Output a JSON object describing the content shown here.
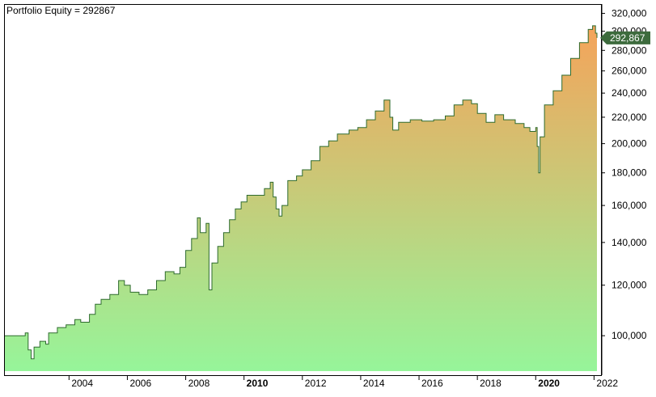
{
  "chart_title": "Portfolio Equity = 292867",
  "colors": {
    "line": "#2e6b2e",
    "fill_top": "#f5a35a",
    "fill_bottom": "#96f59a",
    "badge": "#3d6b3d",
    "frame": "#000000"
  },
  "chart_data": {
    "type": "area",
    "title": "Portfolio Equity = 292867",
    "last_value_label": "292,867",
    "x_axis": {
      "tick_labels": [
        {
          "label": "2004",
          "x": 2004.0,
          "bold": false
        },
        {
          "label": "2006",
          "x": 2006.0,
          "bold": false
        },
        {
          "label": "2008",
          "x": 2008.0,
          "bold": false
        },
        {
          "label": "2010",
          "x": 2010.0,
          "bold": true
        },
        {
          "label": "2012",
          "x": 2012.0,
          "bold": false
        },
        {
          "label": "2014",
          "x": 2014.0,
          "bold": false
        },
        {
          "label": "2016",
          "x": 2016.0,
          "bold": false
        },
        {
          "label": "2018",
          "x": 2018.0,
          "bold": false
        },
        {
          "label": "2020",
          "x": 2020.0,
          "bold": true
        },
        {
          "label": "2022",
          "x": 2022.0,
          "bold": false
        }
      ],
      "range": [
        2001.8,
        2022.1
      ]
    },
    "y_axis": {
      "scale": "log",
      "range": [
        88000,
        330000
      ],
      "tick_labels": [
        {
          "label": "100,000",
          "y": 100000
        },
        {
          "label": "120,000",
          "y": 120000
        },
        {
          "label": "140,000",
          "y": 140000
        },
        {
          "label": "160,000",
          "y": 160000
        },
        {
          "label": "180,000",
          "y": 180000
        },
        {
          "label": "200,000",
          "y": 200000
        },
        {
          "label": "220,000",
          "y": 220000
        },
        {
          "label": "240,000",
          "y": 240000
        },
        {
          "label": "260,000",
          "y": 260000
        },
        {
          "label": "280,000",
          "y": 280000
        },
        {
          "label": "300,000",
          "y": 300000
        },
        {
          "label": "320,000",
          "y": 320000
        }
      ]
    },
    "series": [
      {
        "points": [
          [
            2001.8,
            100000
          ],
          [
            2002.4,
            100000
          ],
          [
            2002.5,
            101000
          ],
          [
            2002.6,
            95000
          ],
          [
            2002.7,
            92000
          ],
          [
            2002.8,
            96000
          ],
          [
            2003.0,
            98000
          ],
          [
            2003.2,
            97000
          ],
          [
            2003.3,
            101000
          ],
          [
            2003.6,
            103000
          ],
          [
            2003.9,
            104000
          ],
          [
            2004.2,
            106000
          ],
          [
            2004.4,
            105000
          ],
          [
            2004.7,
            108000
          ],
          [
            2004.9,
            112000
          ],
          [
            2005.1,
            114000
          ],
          [
            2005.4,
            116000
          ],
          [
            2005.7,
            122000
          ],
          [
            2005.9,
            120000
          ],
          [
            2006.1,
            117000
          ],
          [
            2006.4,
            116000
          ],
          [
            2006.7,
            118000
          ],
          [
            2007.0,
            122000
          ],
          [
            2007.3,
            126000
          ],
          [
            2007.6,
            125000
          ],
          [
            2007.8,
            128000
          ],
          [
            2008.0,
            136000
          ],
          [
            2008.2,
            142000
          ],
          [
            2008.4,
            153000
          ],
          [
            2008.5,
            145000
          ],
          [
            2008.7,
            150000
          ],
          [
            2008.8,
            118000
          ],
          [
            2008.9,
            130000
          ],
          [
            2009.1,
            138000
          ],
          [
            2009.3,
            145000
          ],
          [
            2009.5,
            152000
          ],
          [
            2009.7,
            158000
          ],
          [
            2009.9,
            162000
          ],
          [
            2010.1,
            166000
          ],
          [
            2010.5,
            166000
          ],
          [
            2010.7,
            170000
          ],
          [
            2010.9,
            174000
          ],
          [
            2011.0,
            165000
          ],
          [
            2011.1,
            158000
          ],
          [
            2011.2,
            154000
          ],
          [
            2011.3,
            160000
          ],
          [
            2011.5,
            175000
          ],
          [
            2011.8,
            178000
          ],
          [
            2012.0,
            182000
          ],
          [
            2012.3,
            188000
          ],
          [
            2012.6,
            198000
          ],
          [
            2012.9,
            202000
          ],
          [
            2013.2,
            207000
          ],
          [
            2013.6,
            210000
          ],
          [
            2013.9,
            212000
          ],
          [
            2014.2,
            218000
          ],
          [
            2014.5,
            225000
          ],
          [
            2014.8,
            234000
          ],
          [
            2015.0,
            220000
          ],
          [
            2015.1,
            210000
          ],
          [
            2015.3,
            216000
          ],
          [
            2015.7,
            218000
          ],
          [
            2016.1,
            217000
          ],
          [
            2016.5,
            218000
          ],
          [
            2016.9,
            221000
          ],
          [
            2017.2,
            230000
          ],
          [
            2017.5,
            234000
          ],
          [
            2017.8,
            231000
          ],
          [
            2018.0,
            223000
          ],
          [
            2018.3,
            216000
          ],
          [
            2018.6,
            222000
          ],
          [
            2018.9,
            218000
          ],
          [
            2019.3,
            215000
          ],
          [
            2019.6,
            212000
          ],
          [
            2019.8,
            209000
          ],
          [
            2020.0,
            212000
          ],
          [
            2020.05,
            198000
          ],
          [
            2020.1,
            180000
          ],
          [
            2020.15,
            205000
          ],
          [
            2020.3,
            230000
          ],
          [
            2020.6,
            242000
          ],
          [
            2020.9,
            256000
          ],
          [
            2021.2,
            272000
          ],
          [
            2021.5,
            288000
          ],
          [
            2021.8,
            302000
          ],
          [
            2021.95,
            306000
          ],
          [
            2022.05,
            298000
          ],
          [
            2022.1,
            292867
          ]
        ]
      }
    ]
  }
}
